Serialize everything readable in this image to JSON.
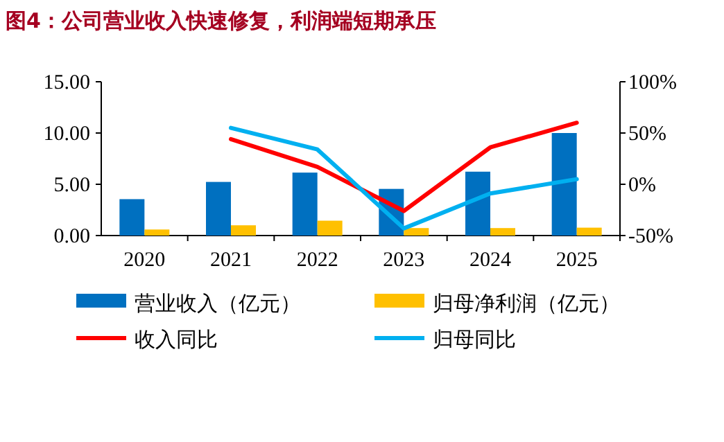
{
  "chart_data": {
    "type": "bar",
    "title": "图4：公司营业收入快速修复，利润端短期承压",
    "categories": [
      "2020",
      "2021",
      "2022",
      "2023",
      "2024",
      "2025"
    ],
    "series": [
      {
        "name": "营业收入（亿元）",
        "color": "#0070c0",
        "values": [
          3.55,
          5.23,
          6.14,
          4.55,
          6.23,
          10.0
        ]
      },
      {
        "name": "归母净利润（亿元）",
        "color": "#ffc000",
        "values": [
          0.59,
          1.0,
          1.45,
          0.73,
          0.73,
          0.77
        ]
      },
      {
        "name": "收入同比",
        "type": "line",
        "axis": "y2",
        "color": "#ff0000",
        "values": [
          null,
          44,
          17,
          -26,
          36,
          60
        ]
      },
      {
        "name": "归母同比",
        "type": "line",
        "axis": "y2",
        "color": "#00b0f0",
        "values": [
          null,
          55,
          34,
          -43,
          -9,
          5
        ]
      }
    ],
    "ylim": [
      0,
      15
    ],
    "yticks": [
      {
        "value": 0,
        "label": "0.00"
      },
      {
        "value": 5,
        "label": "5.00"
      },
      {
        "value": 10,
        "label": "10.00"
      },
      {
        "value": 15,
        "label": "15.00"
      }
    ],
    "y2lim": [
      -50,
      100
    ],
    "y2ticks": [
      {
        "value": -50,
        "label": "-50%"
      },
      {
        "value": 0,
        "label": "0%"
      },
      {
        "value": 50,
        "label": "50%"
      },
      {
        "value": 100,
        "label": "100%"
      }
    ],
    "legend": "bottom",
    "grid": false
  }
}
